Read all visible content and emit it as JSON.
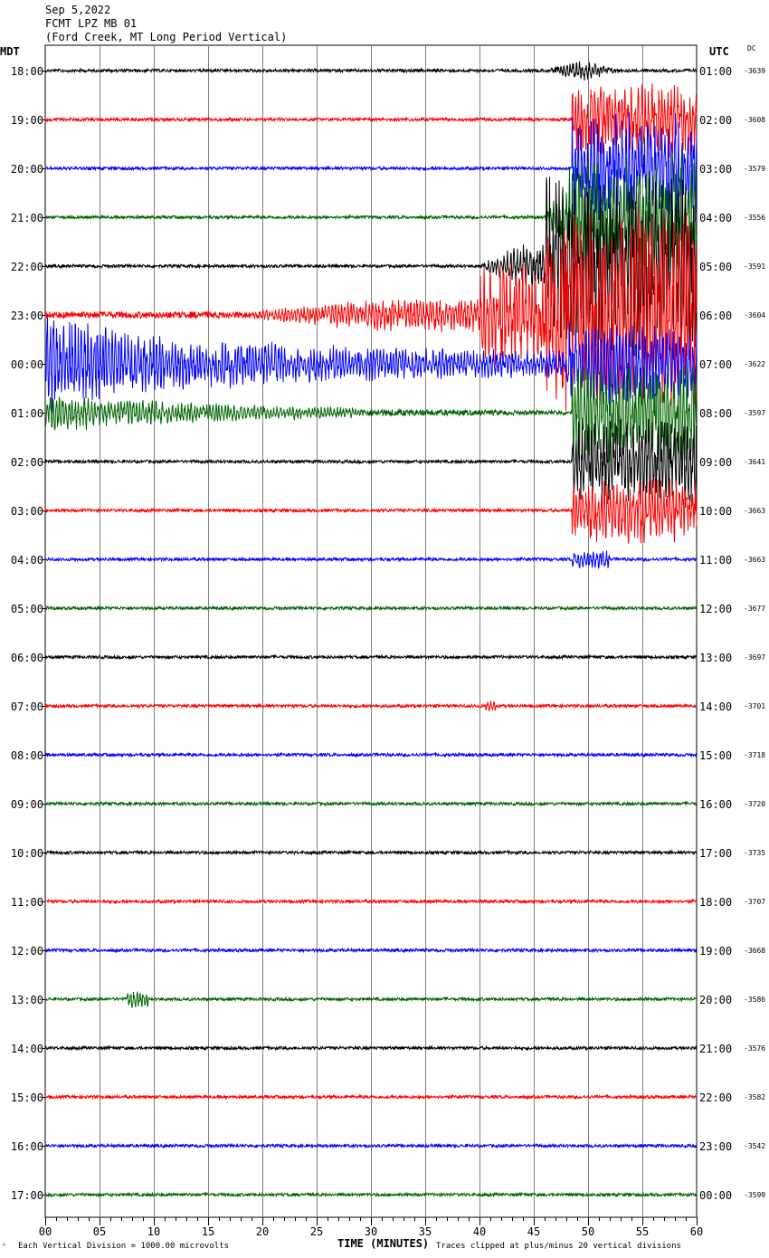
{
  "header": {
    "date": "Sep 5,2022",
    "station": "FCMT LPZ MB 01",
    "location": "(Ford Creek, MT Long Period Vertical)"
  },
  "left_zone": "MDT",
  "right_zone": "UTC",
  "dc_label": "DC",
  "footer": {
    "scale_note": "Each Vertical Division = 1000.00 microvolts",
    "clip_note": "Traces clipped at plus/minus 20 vertical divisions"
  },
  "colors": {
    "black": "#000000",
    "red": "#ff0000",
    "blue": "#0000ff",
    "green": "#006400",
    "grid": "#7f7f7f"
  },
  "chart_data": {
    "type": "line",
    "title": "",
    "xlabel": "TIME (MINUTES)",
    "ylabel": "",
    "xlim": [
      0,
      60
    ],
    "x_ticks": [
      "00",
      "05",
      "10",
      "15",
      "20",
      "25",
      "30",
      "35",
      "40",
      "45",
      "50",
      "55",
      "60"
    ],
    "grid": true,
    "trace_color_cycle": [
      "black",
      "red",
      "blue",
      "green"
    ],
    "rows": [
      {
        "left": "18:00",
        "right": "01:00",
        "dc": "-3639"
      },
      {
        "left": "19:00",
        "right": "02:00",
        "dc": "-3608"
      },
      {
        "left": "20:00",
        "right": "03:00",
        "dc": "-3579"
      },
      {
        "left": "21:00",
        "right": "04:00",
        "dc": "-3556"
      },
      {
        "left": "22:00",
        "right": "05:00",
        "dc": "-3591"
      },
      {
        "left": "23:00",
        "right": "06:00",
        "dc": "-3604"
      },
      {
        "left": "00:00",
        "right": "07:00",
        "dc": "-3622"
      },
      {
        "left": "01:00",
        "right": "08:00",
        "dc": "-3597"
      },
      {
        "left": "02:00",
        "right": "09:00",
        "dc": "-3641"
      },
      {
        "left": "03:00",
        "right": "10:00",
        "dc": "-3663"
      },
      {
        "left": "04:00",
        "right": "11:00",
        "dc": "-3663"
      },
      {
        "left": "05:00",
        "right": "12:00",
        "dc": "-3677"
      },
      {
        "left": "06:00",
        "right": "13:00",
        "dc": "-3697"
      },
      {
        "left": "07:00",
        "right": "14:00",
        "dc": "-3701"
      },
      {
        "left": "08:00",
        "right": "15:00",
        "dc": "-3718"
      },
      {
        "left": "09:00",
        "right": "16:00",
        "dc": "-3720"
      },
      {
        "left": "10:00",
        "right": "17:00",
        "dc": "-3735"
      },
      {
        "left": "11:00",
        "right": "18:00",
        "dc": "-3707"
      },
      {
        "left": "12:00",
        "right": "19:00",
        "dc": "-3668"
      },
      {
        "left": "13:00",
        "right": "20:00",
        "dc": "-3586"
      },
      {
        "left": "14:00",
        "right": "21:00",
        "dc": "-3576"
      },
      {
        "left": "15:00",
        "right": "22:00",
        "dc": "-3582"
      },
      {
        "left": "16:00",
        "right": "23:00",
        "dc": "-3542"
      },
      {
        "left": "17:00",
        "right": "00:00",
        "dc": "-3599"
      }
    ]
  }
}
